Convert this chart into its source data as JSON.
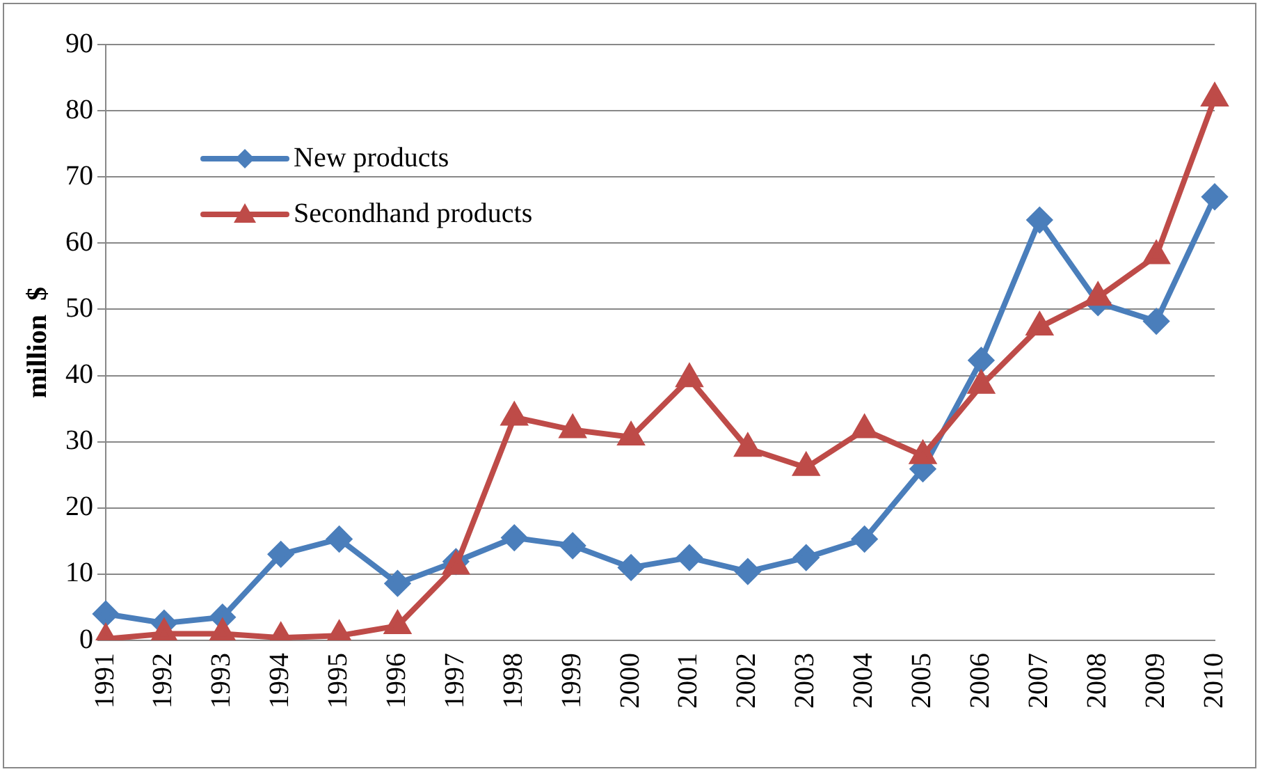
{
  "chart_data": {
    "type": "line",
    "ylabel": "million  $",
    "categories": [
      "1991",
      "1992",
      "1993",
      "1994",
      "1995",
      "1996",
      "1997",
      "1998",
      "1999",
      "2000",
      "2001",
      "2002",
      "2003",
      "2004",
      "2005",
      "2006",
      "2007",
      "2008",
      "2009",
      "2010"
    ],
    "series": [
      {
        "name": "New products",
        "color": "#4a7ebb",
        "marker": "diamond",
        "values": [
          4.0,
          2.6,
          3.5,
          13.0,
          15.3,
          8.6,
          11.9,
          15.5,
          14.3,
          11.0,
          12.5,
          10.4,
          12.5,
          15.3,
          25.9,
          42.3,
          63.5,
          51.0,
          48.2,
          67.0
        ]
      },
      {
        "name": "Secondhand products",
        "color": "#be4b48",
        "marker": "triangle",
        "values": [
          0.2,
          1.0,
          1.0,
          0.4,
          0.7,
          2.2,
          11.2,
          33.7,
          31.8,
          30.7,
          39.5,
          29.0,
          26.1,
          31.8,
          27.9,
          38.5,
          47.3,
          51.8,
          58.1,
          81.9
        ]
      }
    ],
    "ylim": [
      0,
      90
    ],
    "yticks": [
      0,
      10,
      20,
      30,
      40,
      50,
      60,
      70,
      80,
      90
    ],
    "grid": "y",
    "legend": "top left",
    "line_style": "solid"
  }
}
